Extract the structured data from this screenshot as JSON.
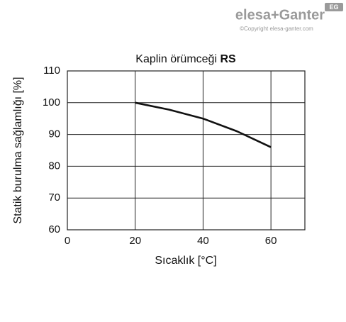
{
  "brand": {
    "logo": "elesa+Ganter",
    "badge": "EG",
    "copyright": "©Copyright elesa-ganter.com"
  },
  "chart_data": {
    "type": "line",
    "title": "Kaplin örümceği",
    "title_bold": "RS",
    "x_label": "Sıcaklık [°C]",
    "y_label": "Statik burulma sağlamlığı [%]",
    "x": [
      20,
      30,
      40,
      50,
      60
    ],
    "values": [
      100,
      97.8,
      95,
      91,
      86
    ],
    "color": "#111111",
    "xlim": [
      0,
      70
    ],
    "xticks": [
      0,
      20,
      40,
      60
    ],
    "ylim": [
      60,
      110
    ],
    "yticks": [
      60,
      70,
      80,
      90,
      100,
      110
    ],
    "grid": true
  }
}
